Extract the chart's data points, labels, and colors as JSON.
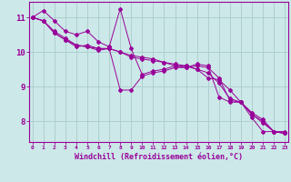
{
  "title": "",
  "xlabel": "Windchill (Refroidissement éolien,°C)",
  "background_color": "#cce8e8",
  "line_color": "#990099",
  "grid_color": "#aacccc",
  "x_ticks": [
    0,
    1,
    2,
    3,
    4,
    5,
    6,
    7,
    8,
    9,
    10,
    11,
    12,
    13,
    14,
    15,
    16,
    17,
    18,
    19,
    20,
    21,
    22,
    23
  ],
  "y_ticks": [
    8,
    9,
    10,
    11
  ],
  "ylim": [
    7.4,
    11.45
  ],
  "xlim": [
    -0.3,
    23.3
  ],
  "series": [
    [
      11.0,
      11.2,
      10.9,
      10.6,
      10.5,
      10.6,
      10.3,
      10.15,
      11.25,
      10.1,
      9.35,
      9.45,
      9.5,
      9.6,
      9.55,
      9.65,
      9.6,
      8.7,
      8.55,
      8.55,
      8.1,
      7.7,
      7.7,
      7.7
    ],
    [
      11.0,
      10.9,
      10.6,
      10.4,
      10.2,
      10.15,
      10.05,
      10.1,
      10.0,
      9.9,
      9.85,
      9.8,
      9.7,
      9.65,
      9.6,
      9.5,
      9.25,
      9.2,
      8.9,
      8.55,
      8.25,
      8.05,
      7.7,
      7.65
    ],
    [
      11.0,
      10.9,
      10.55,
      10.35,
      10.2,
      10.15,
      10.1,
      10.1,
      10.0,
      9.85,
      9.8,
      9.75,
      9.7,
      9.6,
      9.6,
      9.5,
      9.4,
      9.1,
      8.65,
      8.55,
      8.2,
      8.0,
      7.7,
      7.65
    ],
    [
      11.0,
      10.9,
      10.55,
      10.35,
      10.15,
      10.2,
      10.1,
      10.1,
      8.9,
      8.9,
      9.3,
      9.4,
      9.45,
      9.55,
      9.55,
      9.6,
      9.55,
      9.25,
      8.6,
      8.55,
      8.2,
      7.95,
      7.7,
      7.65
    ]
  ]
}
